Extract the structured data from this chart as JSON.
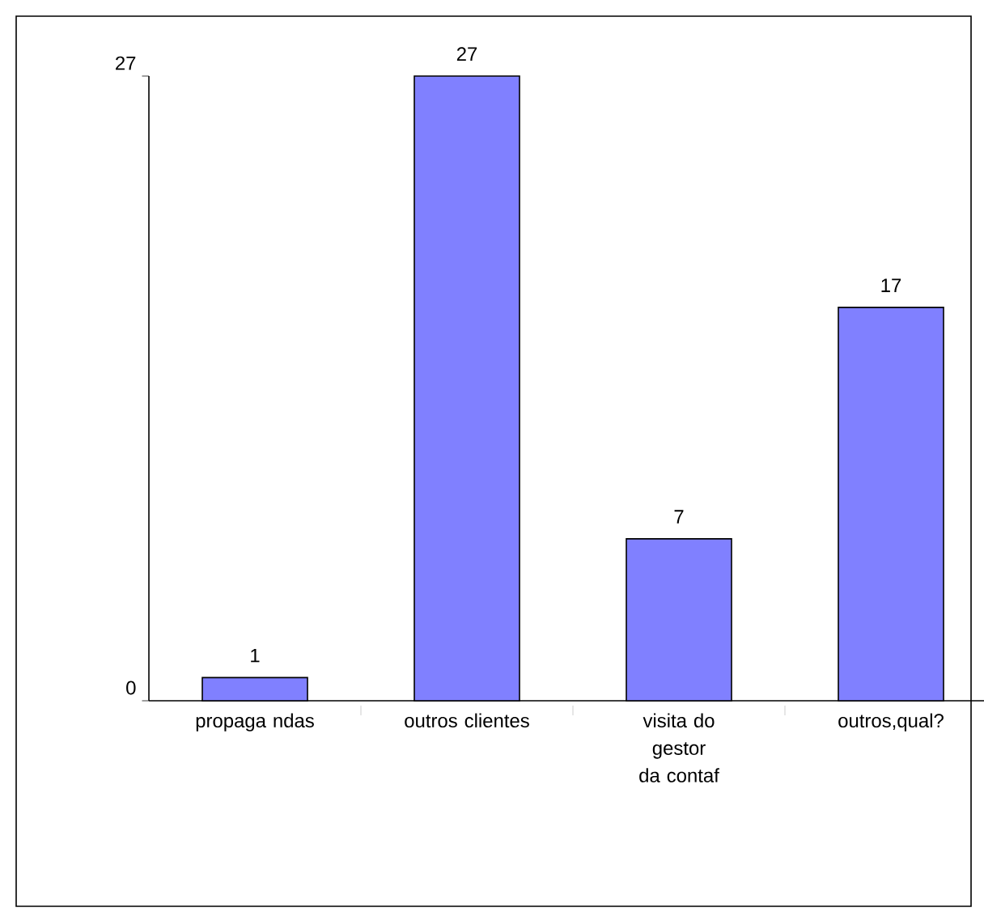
{
  "chart_data": {
    "type": "bar",
    "categories": [
      "propaga ndas",
      "outros clientes",
      "visita do gestor da contaf",
      "outros,qual?"
    ],
    "values": [
      1,
      27,
      7,
      17
    ],
    "color": "#8080ff",
    "ylim": [
      0,
      27
    ],
    "yticks": [
      0,
      27
    ],
    "data_labels": true
  }
}
